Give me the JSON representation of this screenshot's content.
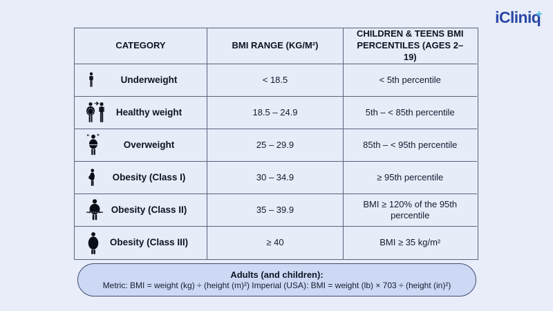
{
  "logo": {
    "text": "iCliniq",
    "plus": "+"
  },
  "table": {
    "headers": [
      "CATEGORY",
      "BMI RANGE (KG/M²)",
      "CHILDREN & TEENS BMI PERCENTILES (AGES 2–19)"
    ],
    "rows": [
      {
        "icon": "underweight-person-icon",
        "category": "Underweight",
        "bmi_range": "< 18.5",
        "child_percentile": "< 5th percentile"
      },
      {
        "icon": "healthy-weight-person-icon",
        "category": "Healthy weight",
        "bmi_range": "18.5 – 24.9",
        "child_percentile": "5th – < 85th percentile"
      },
      {
        "icon": "overweight-person-icon",
        "category": "Overweight",
        "bmi_range": "25 – 29.9",
        "child_percentile": "85th – < 95th percentile"
      },
      {
        "icon": "obesity-class-1-person-icon",
        "category": "Obesity (Class I)",
        "bmi_range": "30 – 34.9",
        "child_percentile": "≥ 95th percentile"
      },
      {
        "icon": "obesity-class-2-person-icon",
        "category": "Obesity (Class II)",
        "bmi_range": "35 – 39.9",
        "child_percentile": "BMI ≥ 120% of the 95th percentile"
      },
      {
        "icon": "obesity-class-3-person-icon",
        "category": "Obesity (Class III)",
        "bmi_range": "≥ 40",
        "child_percentile": "BMI ≥ 35 kg/m²"
      }
    ]
  },
  "footnote": {
    "title": "Adults (and children):",
    "formula": "Metric: BMI = weight (kg) ÷ (height (m)²) Imperial (USA): BMI = weight (lb) × 703 ÷ (height (in)²)"
  },
  "colors": {
    "background": "#e8edf9",
    "table_border": "#59627a",
    "pill_background": "#cdd9f4",
    "pill_border": "#3c4a6e",
    "logo_blue": "#2a47a5",
    "logo_cyan": "#4cc6e9",
    "text": "#10172a"
  },
  "chart_data": {
    "type": "table",
    "columns": [
      "CATEGORY",
      "BMI RANGE (KG/M²)",
      "CHILDREN & TEENS BMI PERCENTILES (AGES 2–19)"
    ],
    "rows": [
      [
        "Underweight",
        "< 18.5",
        "< 5th percentile"
      ],
      [
        "Healthy weight",
        "18.5 – 24.9",
        "5th – < 85th percentile"
      ],
      [
        "Overweight",
        "25 – 29.9",
        "85th – < 95th percentile"
      ],
      [
        "Obesity (Class I)",
        "30 – 34.9",
        "≥ 95th percentile"
      ],
      [
        "Obesity (Class II)",
        "35 – 39.9",
        "BMI ≥ 120% of the 95th percentile"
      ],
      [
        "Obesity (Class III)",
        "≥ 40",
        "BMI ≥ 35 kg/m²"
      ]
    ],
    "footnote": "Adults (and children): Metric: BMI = weight (kg) ÷ (height (m)²) Imperial (USA): BMI = weight (lb) × 703 ÷ (height (in)²)",
    "legend_position": "none",
    "grid": true
  }
}
